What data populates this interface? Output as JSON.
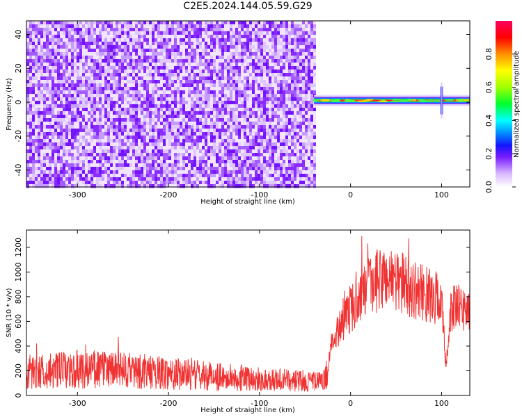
{
  "title": "C2E5.2024.144.05.59.G29",
  "chart_data": [
    {
      "type": "heatmap",
      "xlabel": "Height of straight line (km)",
      "ylabel": "Frequency (Hz)",
      "xlim": [
        -356,
        131
      ],
      "ylim": [
        -50,
        48
      ],
      "xticks": [
        -300,
        -200,
        -100,
        0,
        100
      ],
      "yticks": [
        -40,
        -20,
        0,
        20,
        40
      ],
      "colorbar": {
        "label": "Normalized spectral amplitude",
        "range": [
          0.0,
          1.0
        ],
        "ticks": [
          0.0,
          0.2,
          0.4,
          0.6,
          0.8
        ]
      },
      "noise_region_x": [
        -356,
        -40
      ],
      "signal_line": {
        "x": [
          -40,
          131
        ],
        "frequency": 1
      }
    },
    {
      "type": "line",
      "xlabel": "Height of straight line (km)",
      "ylabel": "SNR (10 * v/v)",
      "xlim": [
        -356,
        131
      ],
      "ylim": [
        0,
        1340
      ],
      "xticks": [
        -300,
        -200,
        -100,
        0,
        100
      ],
      "yticks": [
        0,
        200,
        400,
        600,
        800,
        1000,
        1200
      ],
      "color": "#f03232",
      "x": [
        -356,
        -340,
        -320,
        -300,
        -280,
        -260,
        -240,
        -220,
        -200,
        -180,
        -160,
        -140,
        -120,
        -100,
        -80,
        -60,
        -40,
        -30,
        -25,
        -20,
        -10,
        0,
        10,
        20,
        30,
        40,
        50,
        60,
        70,
        80,
        90,
        100,
        105,
        110,
        120,
        131
      ],
      "y": [
        190,
        195,
        200,
        210,
        215,
        205,
        200,
        190,
        180,
        170,
        160,
        150,
        140,
        130,
        125,
        120,
        115,
        110,
        200,
        450,
        600,
        700,
        800,
        870,
        930,
        960,
        940,
        900,
        850,
        830,
        800,
        780,
        200,
        720,
        700,
        700
      ]
    }
  ]
}
